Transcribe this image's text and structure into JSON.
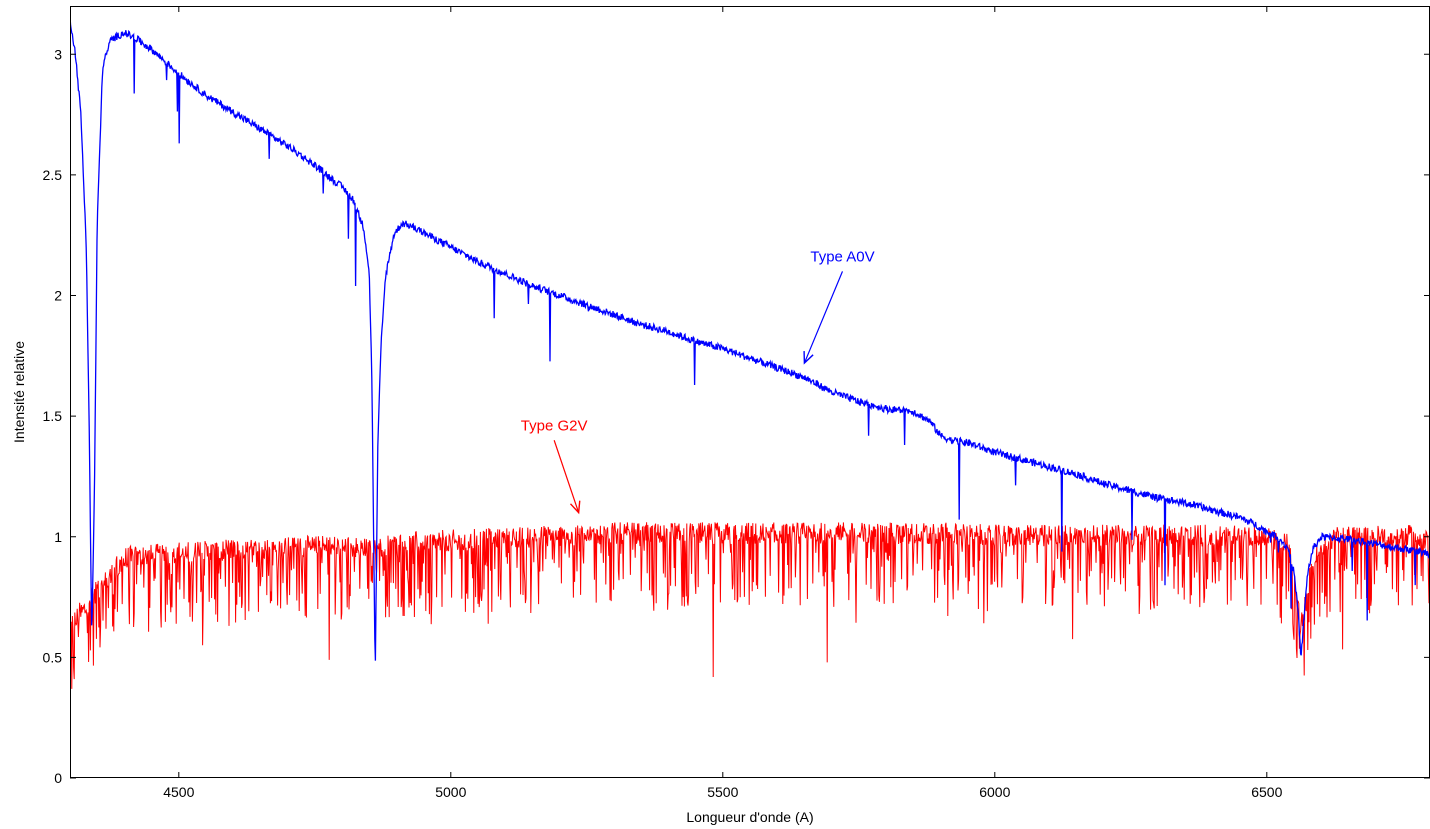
{
  "chart_data": {
    "type": "line",
    "title": "",
    "xlabel": "Longueur d'onde (A)",
    "ylabel": "Intensité relative",
    "xlim": [
      4300,
      6800
    ],
    "ylim": [
      0,
      3.2
    ],
    "x_ticks": [
      4500,
      5000,
      5500,
      6000,
      6500
    ],
    "x_tick_labels": [
      "4500",
      "5000",
      "5500",
      "6000",
      "6500"
    ],
    "y_ticks": [
      0,
      0.5,
      1,
      1.5,
      2,
      2.5,
      3
    ],
    "y_tick_labels": [
      "0",
      "0.5",
      "1",
      "1.5",
      "2",
      "2.5",
      "3"
    ],
    "grid": false,
    "series": [
      {
        "name": "Type A0V",
        "color": "#0000ff",
        "x": [
          4300,
          4310,
          4320,
          4330,
          4335,
          4340,
          4345,
          4350,
          4360,
          4375,
          4400,
          4425,
          4450,
          4475,
          4500,
          4550,
          4600,
          4650,
          4700,
          4750,
          4800,
          4820,
          4840,
          4850,
          4855,
          4861,
          4866,
          4872,
          4880,
          4895,
          4910,
          4925,
          4950,
          5000,
          5050,
          5100,
          5150,
          5200,
          5250,
          5300,
          5350,
          5400,
          5450,
          5500,
          5550,
          5600,
          5650,
          5700,
          5750,
          5800,
          5850,
          5880,
          5900,
          5920,
          5950,
          6000,
          6050,
          6100,
          6150,
          6200,
          6250,
          6300,
          6350,
          6400,
          6450,
          6480,
          6500,
          6520,
          6540,
          6550,
          6557,
          6563,
          6569,
          6575,
          6585,
          6600,
          6650,
          6700,
          6750,
          6800
        ],
        "y": [
          3.15,
          3.0,
          2.75,
          2.2,
          1.5,
          0.58,
          1.2,
          2.3,
          2.95,
          3.06,
          3.09,
          3.06,
          3.02,
          2.97,
          2.92,
          2.83,
          2.76,
          2.69,
          2.62,
          2.54,
          2.45,
          2.4,
          2.28,
          2.1,
          1.65,
          0.42,
          1.4,
          1.8,
          2.08,
          2.25,
          2.3,
          2.29,
          2.26,
          2.2,
          2.14,
          2.09,
          2.04,
          2.0,
          1.96,
          1.92,
          1.88,
          1.85,
          1.81,
          1.78,
          1.74,
          1.7,
          1.66,
          1.6,
          1.56,
          1.53,
          1.52,
          1.48,
          1.42,
          1.4,
          1.39,
          1.35,
          1.32,
          1.29,
          1.26,
          1.22,
          1.19,
          1.16,
          1.14,
          1.11,
          1.08,
          1.05,
          1.02,
          1.0,
          0.95,
          0.85,
          0.7,
          0.5,
          0.68,
          0.85,
          0.95,
          1.0,
          0.99,
          0.97,
          0.95,
          0.93
        ]
      },
      {
        "name": "Type G2V",
        "color": "#ff0000",
        "x": [
          4300,
          4400,
          4500,
          4600,
          4700,
          4800,
          4860,
          4900,
          5000,
          5100,
          5200,
          5300,
          5400,
          5500,
          5600,
          5700,
          5800,
          5900,
          6000,
          6100,
          6200,
          6300,
          6400,
          6500,
          6540,
          6563,
          6585,
          6620,
          6700,
          6800
        ],
        "y": [
          0.62,
          0.9,
          0.92,
          0.93,
          0.94,
          0.95,
          0.93,
          0.96,
          0.97,
          0.98,
          0.99,
          1.0,
          1.0,
          1.0,
          1.0,
          1.0,
          1.0,
          1.0,
          0.99,
          0.99,
          0.99,
          0.99,
          0.99,
          0.99,
          0.95,
          0.62,
          0.9,
          0.98,
          0.99,
          0.99
        ]
      }
    ],
    "annotations": [
      {
        "text": "Type A0V",
        "color": "#0000ff",
        "arrow_from": [
          5720,
          2.1
        ],
        "arrow_to": [
          5650,
          1.72
        ]
      },
      {
        "text": "Type G2V",
        "color": "#ff0000",
        "arrow_from": [
          5190,
          1.4
        ],
        "arrow_to": [
          5235,
          1.1
        ]
      }
    ]
  }
}
